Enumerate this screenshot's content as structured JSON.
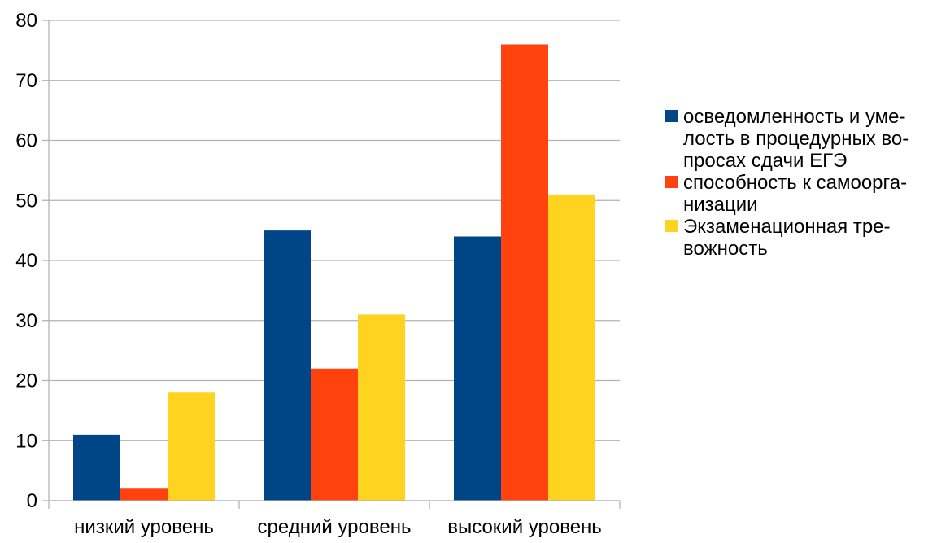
{
  "chart_data": {
    "type": "bar",
    "categories": [
      "низкий уровень",
      "средний уровень",
      "высокий уровень"
    ],
    "series": [
      {
        "name": "осведомленность и уме-\nлость в процедурных во-\nпросах сдачи ЕГЭ",
        "values": [
          11,
          45,
          44
        ],
        "color": "#004586"
      },
      {
        "name": "способность к самоорга-\nнизации",
        "values": [
          2,
          22,
          76
        ],
        "color": "#ff420e"
      },
      {
        "name": "Экзаменационная тре-\nвожность",
        "values": [
          18,
          31,
          51
        ],
        "color": "#ffd320"
      }
    ],
    "ylim": [
      0,
      80
    ],
    "yticks": [
      0,
      10,
      20,
      30,
      40,
      50,
      60,
      70,
      80
    ],
    "grid": true,
    "legend_position": "right"
  }
}
